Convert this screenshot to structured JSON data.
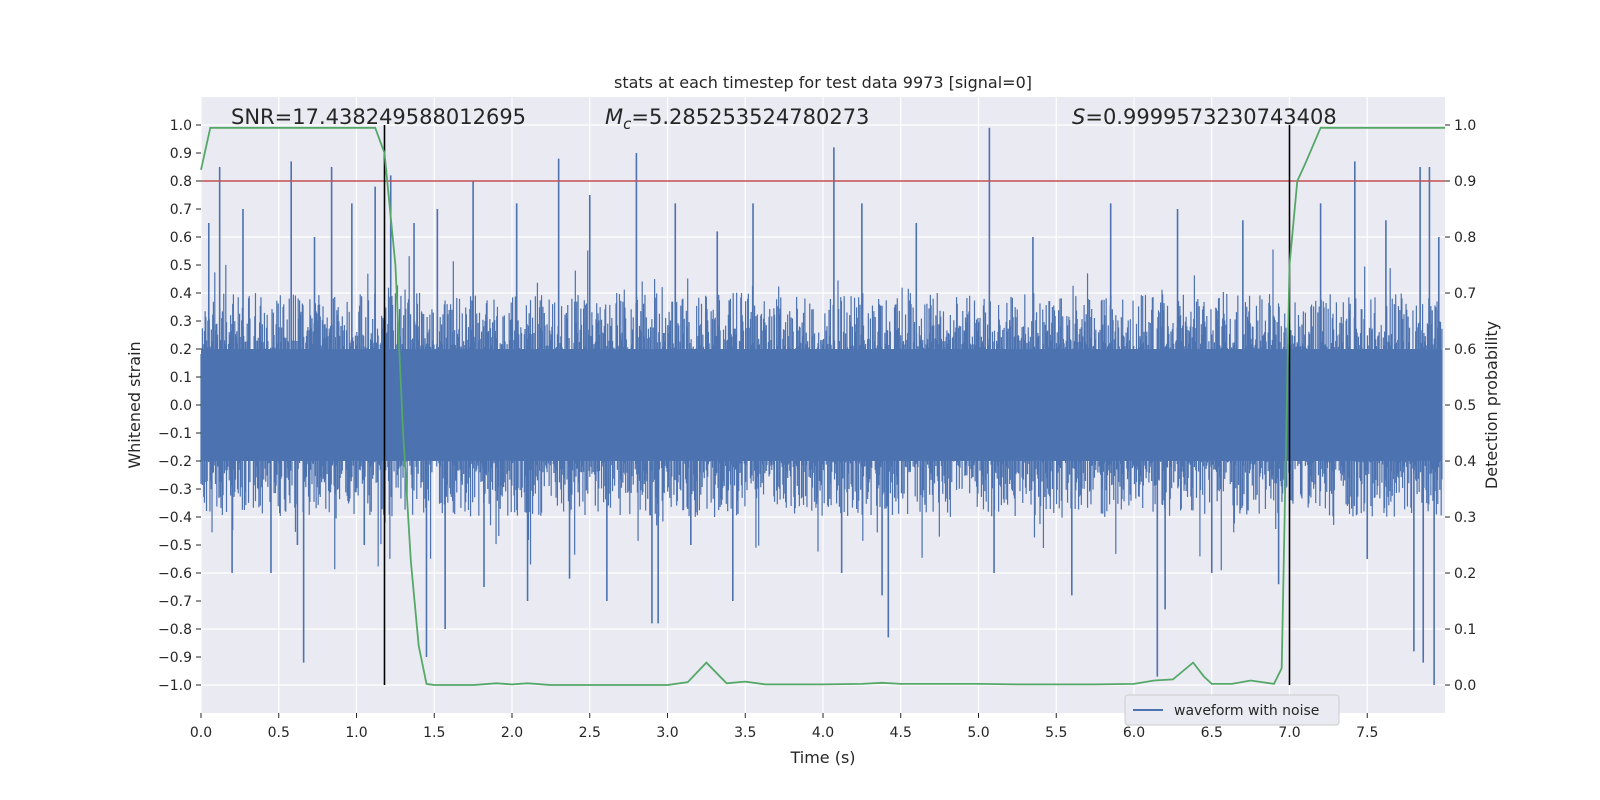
{
  "chart_data": {
    "type": "line",
    "title": "stats at each timestep for test data 9973 [signal=0]",
    "xlabel": "Time (s)",
    "ylabel_left": "Whitened strain",
    "ylabel_right": "Detection probability",
    "xlim": [
      0.0,
      8.0
    ],
    "ylim_left": [
      -1.1,
      1.1
    ],
    "ylim_right": [
      -0.05,
      1.05
    ],
    "x_ticks": [
      "0.0",
      "0.5",
      "1.0",
      "1.5",
      "2.0",
      "2.5",
      "3.0",
      "3.5",
      "4.0",
      "4.5",
      "5.0",
      "5.5",
      "6.0",
      "6.5",
      "7.0",
      "7.5"
    ],
    "y_ticks_left": [
      "1.0",
      "0.9",
      "0.8",
      "0.7",
      "0.6",
      "0.5",
      "0.4",
      "0.3",
      "0.2",
      "0.1",
      "0.0",
      "−0.1",
      "−0.2",
      "−0.3",
      "−0.4",
      "−0.5",
      "−0.6",
      "−0.7",
      "−0.8",
      "−0.9",
      "−1.0"
    ],
    "y_ticks_right": [
      "1.0",
      "0.9",
      "0.8",
      "0.7",
      "0.6",
      "0.5",
      "0.4",
      "0.3",
      "0.2",
      "0.1",
      "0.0"
    ],
    "grid": true,
    "annotations": {
      "snr": "SNR=17.438249588012695",
      "mc_symbol": "M",
      "mc_sub": "c",
      "mc_value": "=5.285253524780273",
      "s_symbol": "S",
      "s_value": "=0.9999573230743408"
    },
    "legend": {
      "label": "waveform with noise",
      "position": "lower-right"
    },
    "threshold_line": {
      "axis": "right",
      "value": 0.9,
      "color": "#c44e52"
    },
    "vertical_lines": [
      1.18,
      7.0
    ],
    "colors": {
      "strain": "#4c72b0",
      "probability": "#55a868",
      "threshold": "#c44e52",
      "vline": "#000000",
      "axes_bg": "#eaeaf2",
      "grid": "#ffffff"
    },
    "series": [
      {
        "name": "detection probability",
        "axis": "right",
        "x": [
          0.0,
          0.06,
          0.12,
          0.25,
          0.5,
          0.75,
          1.0,
          1.12,
          1.18,
          1.25,
          1.3,
          1.35,
          1.4,
          1.45,
          1.5,
          1.75,
          1.9,
          2.0,
          2.1,
          2.25,
          2.5,
          2.75,
          3.0,
          3.13,
          3.25,
          3.38,
          3.5,
          3.63,
          3.75,
          4.0,
          4.25,
          4.38,
          4.5,
          4.75,
          5.0,
          5.25,
          5.5,
          5.75,
          6.0,
          6.13,
          6.25,
          6.38,
          6.45,
          6.5,
          6.63,
          6.75,
          6.9,
          6.95,
          7.0,
          7.05,
          7.1,
          7.2,
          7.3,
          7.5,
          7.75,
          8.0
        ],
        "values": [
          0.92,
          0.995,
          0.995,
          0.995,
          0.995,
          0.995,
          0.995,
          0.995,
          0.95,
          0.75,
          0.45,
          0.22,
          0.07,
          0.002,
          0.0,
          0.0,
          0.003,
          0.001,
          0.003,
          0.0,
          0.0,
          0.0,
          0.0,
          0.005,
          0.04,
          0.003,
          0.006,
          0.001,
          0.001,
          0.001,
          0.002,
          0.004,
          0.002,
          0.002,
          0.002,
          0.001,
          0.001,
          0.001,
          0.002,
          0.008,
          0.01,
          0.04,
          0.015,
          0.002,
          0.002,
          0.008,
          0.002,
          0.03,
          0.75,
          0.9,
          0.93,
          0.995,
          0.995,
          0.995,
          0.995,
          0.995
        ]
      },
      {
        "name": "waveform with noise",
        "axis": "left",
        "x": [
          0.05,
          0.12,
          0.2,
          0.27,
          0.45,
          0.58,
          0.62,
          0.66,
          0.73,
          0.84,
          0.97,
          1.05,
          1.12,
          1.22,
          1.37,
          1.45,
          1.52,
          1.57,
          1.75,
          1.82,
          2.03,
          2.1,
          2.3,
          2.37,
          2.5,
          2.61,
          2.8,
          2.9,
          2.94,
          3.05,
          3.15,
          3.32,
          3.42,
          3.55,
          4.07,
          4.12,
          4.25,
          4.38,
          4.42,
          4.6,
          5.07,
          5.1,
          5.35,
          5.6,
          5.85,
          6.15,
          6.2,
          6.28,
          6.5,
          6.7,
          6.93,
          7.2,
          7.42,
          7.5,
          7.62,
          7.8,
          7.84,
          7.86,
          7.9,
          7.93,
          7.96
        ],
        "values": [
          0.65,
          0.85,
          -0.6,
          0.7,
          -0.6,
          0.87,
          -0.5,
          -0.92,
          0.6,
          0.85,
          0.72,
          -0.5,
          0.78,
          0.82,
          0.65,
          -0.9,
          0.7,
          -0.8,
          0.8,
          -0.65,
          0.72,
          -0.7,
          0.88,
          -0.62,
          0.75,
          -0.7,
          0.9,
          -0.78,
          -0.78,
          0.72,
          -0.5,
          0.62,
          -0.7,
          0.72,
          0.92,
          -0.6,
          0.72,
          -0.68,
          -0.83,
          0.65,
          0.99,
          -0.6,
          0.6,
          -0.68,
          0.72,
          -0.97,
          -0.73,
          0.7,
          -0.6,
          0.66,
          -0.64,
          0.72,
          0.87,
          -0.55,
          0.66,
          -0.88,
          0.85,
          -0.92,
          0.85,
          -1.0,
          0.6
        ]
      }
    ]
  }
}
